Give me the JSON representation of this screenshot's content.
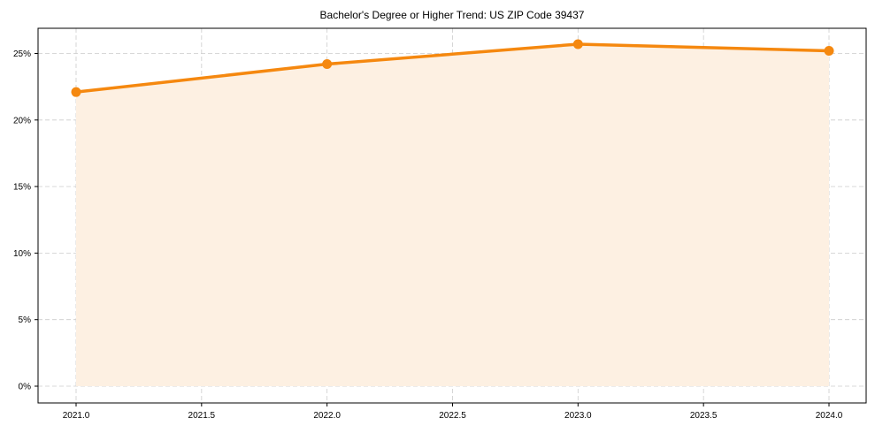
{
  "chart_data": {
    "type": "line",
    "title": "Bachelor's Degree or Higher Trend: US ZIP Code 39437",
    "xlabel": "",
    "ylabel": "",
    "x": [
      2021,
      2022,
      2023,
      2024
    ],
    "series": [
      {
        "name": "Bachelor's Degree or Higher",
        "values": [
          22.1,
          24.2,
          25.7,
          25.2
        ],
        "color": "#f5880f",
        "fill": "#fdf0e2"
      }
    ],
    "x_ticks": [
      "2021.0",
      "2021.5",
      "2022.0",
      "2022.5",
      "2023.0",
      "2023.5",
      "2024.0"
    ],
    "y_ticks": [
      "0%",
      "5%",
      "10%",
      "15%",
      "20%",
      "25%"
    ],
    "xlim": [
      2020.7,
      2024.3
    ],
    "ylim": [
      -1.25,
      26.9
    ],
    "grid": true,
    "legend": "none"
  }
}
